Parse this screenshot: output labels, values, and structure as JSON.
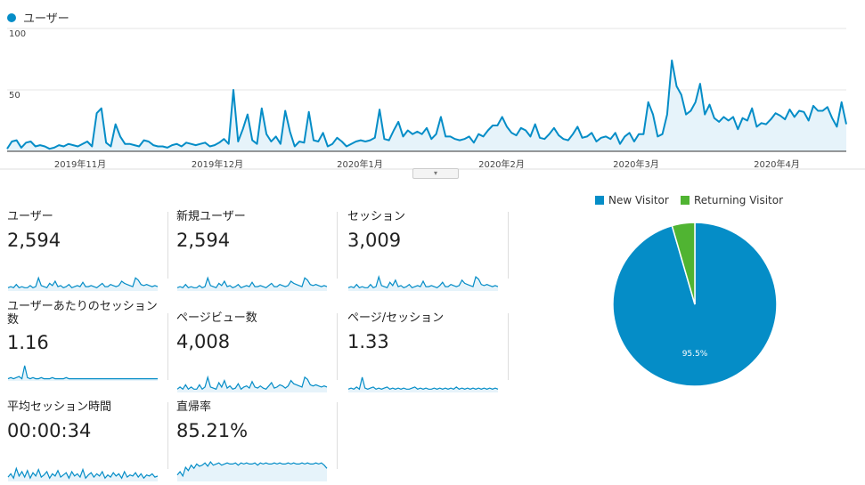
{
  "colors": {
    "line": "#058dc7",
    "fill": "#e6f3fa",
    "new_visitor": "#058dc7",
    "returning_visitor": "#50b432"
  },
  "main": {
    "legend_label": "ユーザー",
    "y_ticks": [
      "100",
      "50"
    ],
    "x_ticks": [
      "2019年11月",
      "2019年12月",
      "2020年1月",
      "2020年2月",
      "2020年3月",
      "2020年4月"
    ]
  },
  "chart_data": [
    {
      "type": "area",
      "series": [
        {
          "name": "ユーザー",
          "values": [
            2,
            8,
            9,
            3,
            7,
            8,
            4,
            5,
            4,
            2,
            3,
            5,
            4,
            6,
            5,
            4,
            6,
            8,
            4,
            31,
            35,
            7,
            4,
            22,
            12,
            6,
            6,
            5,
            4,
            9,
            8,
            5,
            4,
            4,
            3,
            5,
            6,
            4,
            7,
            6,
            5,
            6,
            7,
            4,
            5,
            7,
            10,
            6,
            50,
            8,
            18,
            30,
            9,
            6,
            35,
            14,
            8,
            12,
            6,
            33,
            16,
            4,
            8,
            7,
            32,
            9,
            8,
            15,
            4,
            6,
            11,
            8,
            4,
            6,
            8,
            9,
            8,
            9,
            11,
            34,
            10,
            9,
            17,
            24,
            12,
            17,
            14,
            16,
            14,
            19,
            10,
            14,
            28,
            12,
            12,
            10,
            9,
            10,
            12,
            7,
            14,
            12,
            17,
            21,
            21,
            28,
            20,
            15,
            13,
            19,
            17,
            12,
            22,
            11,
            10,
            14,
            19,
            13,
            10,
            9,
            14,
            20,
            11,
            12,
            15,
            8,
            11,
            12,
            10,
            15,
            6,
            12,
            15,
            8,
            14,
            14,
            40,
            30,
            12,
            14,
            30,
            74,
            53,
            46,
            30,
            33,
            40,
            55,
            30,
            38,
            27,
            24,
            28,
            25,
            28,
            18,
            27,
            25,
            35,
            20,
            23,
            22,
            26,
            31,
            29,
            26,
            34,
            28,
            33,
            32,
            25,
            37,
            33,
            33,
            36,
            27,
            20,
            40,
            22
          ],
          "fill": true
        }
      ],
      "ylim": [
        0,
        100
      ],
      "xlabels": [
        "2019年11月",
        "2019年12月",
        "2020年1月",
        "2020年2月",
        "2020年3月",
        "2020年4月"
      ]
    },
    {
      "type": "pie",
      "slices": [
        {
          "label": "New Visitor",
          "value": 95.5,
          "data_label": "95.5%"
        },
        {
          "label": "Returning Visitor",
          "value": 4.5
        }
      ]
    }
  ],
  "metrics": [
    {
      "label": "ユーザー",
      "value": "2,594",
      "spark": [
        3,
        4,
        3,
        6,
        3,
        4,
        3,
        3,
        5,
        3,
        4,
        12,
        5,
        4,
        3,
        7,
        5,
        9,
        4,
        5,
        3,
        4,
        6,
        3,
        4,
        5,
        4,
        8,
        4,
        4,
        5,
        4,
        3,
        5,
        7,
        4,
        4,
        6,
        5,
        4,
        5,
        9,
        7,
        6,
        5,
        4,
        12,
        10,
        6,
        5,
        6,
        5,
        4,
        5,
        4
      ]
    },
    {
      "label": "新規ユーザー",
      "value": "2,594",
      "spark": [
        3,
        4,
        3,
        6,
        3,
        4,
        3,
        3,
        5,
        3,
        4,
        12,
        5,
        4,
        3,
        7,
        5,
        9,
        4,
        5,
        3,
        4,
        6,
        3,
        4,
        5,
        4,
        8,
        4,
        4,
        5,
        4,
        3,
        5,
        7,
        4,
        4,
        6,
        5,
        4,
        5,
        9,
        7,
        6,
        5,
        4,
        12,
        10,
        6,
        5,
        6,
        5,
        4,
        5,
        4
      ]
    },
    {
      "label": "セッション",
      "value": "3,009",
      "spark": [
        3,
        4,
        3,
        6,
        3,
        4,
        3,
        3,
        6,
        3,
        4,
        13,
        5,
        4,
        3,
        8,
        5,
        10,
        4,
        5,
        3,
        4,
        6,
        3,
        4,
        5,
        4,
        9,
        4,
        4,
        5,
        4,
        3,
        5,
        8,
        4,
        4,
        6,
        5,
        4,
        5,
        10,
        7,
        6,
        5,
        4,
        13,
        11,
        6,
        5,
        6,
        5,
        4,
        5,
        4
      ]
    },
    {
      "label": "ユーザーあたりのセッション数",
      "value": "1.16",
      "spark": [
        2,
        3,
        2,
        3,
        4,
        2,
        14,
        3,
        2,
        3,
        2,
        2,
        3,
        2,
        2,
        2,
        3,
        2,
        2,
        2,
        2,
        3,
        2,
        2,
        2,
        2,
        2,
        2,
        2,
        2,
        2,
        2,
        2,
        2,
        2,
        2,
        2,
        2,
        2,
        2,
        2,
        2,
        2,
        2,
        2,
        2,
        2,
        2,
        2,
        2,
        2,
        2,
        2,
        2,
        2
      ]
    },
    {
      "label": "ページビュー数",
      "value": "4,008",
      "spark": [
        3,
        5,
        3,
        7,
        3,
        5,
        3,
        3,
        7,
        3,
        5,
        14,
        5,
        4,
        3,
        9,
        5,
        11,
        4,
        6,
        3,
        4,
        8,
        3,
        5,
        6,
        4,
        10,
        5,
        4,
        6,
        4,
        3,
        6,
        9,
        4,
        5,
        7,
        6,
        4,
        6,
        11,
        8,
        7,
        6,
        5,
        14,
        12,
        7,
        6,
        7,
        6,
        5,
        6,
        5
      ]
    },
    {
      "label": "ページ/セッション",
      "value": "1.33",
      "spark": [
        3,
        4,
        3,
        5,
        3,
        14,
        4,
        3,
        4,
        5,
        3,
        4,
        3,
        4,
        5,
        3,
        4,
        3,
        4,
        3,
        4,
        3,
        3,
        4,
        5,
        3,
        4,
        3,
        4,
        3,
        3,
        4,
        3,
        4,
        3,
        4,
        3,
        4,
        3,
        5,
        3,
        4,
        3,
        4,
        3,
        4,
        3,
        4,
        3,
        4,
        3,
        4,
        3,
        4,
        3
      ]
    },
    {
      "label": "平均セッション時間",
      "value": "00:00:34",
      "spark": [
        4,
        7,
        3,
        12,
        5,
        9,
        4,
        10,
        3,
        8,
        5,
        11,
        4,
        6,
        9,
        3,
        7,
        5,
        10,
        4,
        6,
        8,
        3,
        9,
        5,
        7,
        4,
        11,
        3,
        6,
        8,
        4,
        7,
        5,
        9,
        3,
        6,
        4,
        8,
        5,
        7,
        3,
        9,
        4,
        6,
        5,
        8,
        4,
        7,
        3,
        6,
        5,
        7,
        4,
        5
      ]
    },
    {
      "label": "直帰率",
      "value": "85.21%",
      "spark": [
        6,
        9,
        5,
        13,
        10,
        15,
        12,
        16,
        14,
        15,
        17,
        14,
        18,
        15,
        16,
        17,
        15,
        16,
        17,
        16,
        16,
        17,
        15,
        17,
        16,
        17,
        16,
        16,
        17,
        15,
        17,
        16,
        17,
        16,
        16,
        17,
        16,
        17,
        16,
        16,
        17,
        16,
        17,
        16,
        16,
        17,
        16,
        17,
        16,
        16,
        17,
        16,
        17,
        15,
        12
      ]
    }
  ]
}
